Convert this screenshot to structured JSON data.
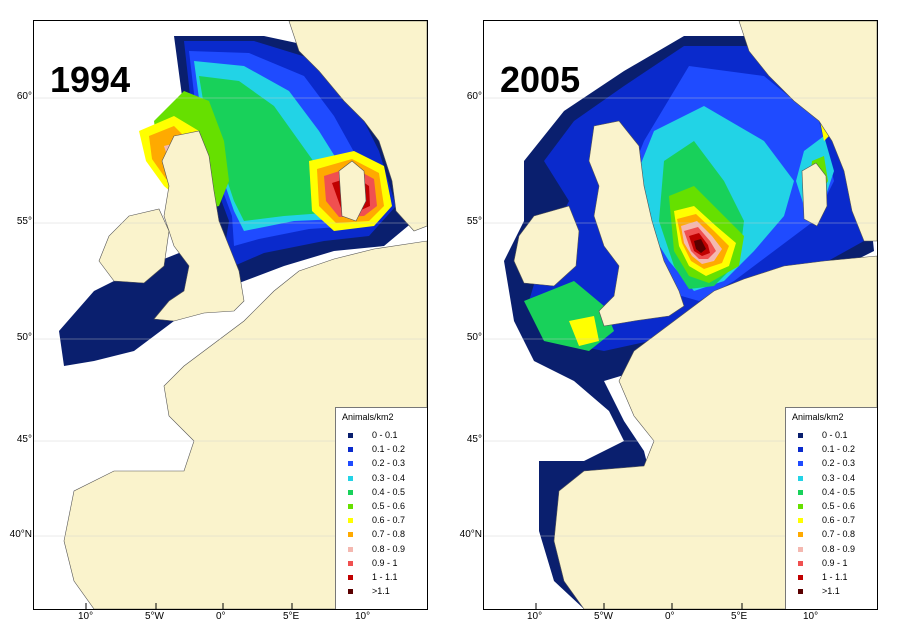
{
  "panels": [
    {
      "year": "1994"
    },
    {
      "year": "2005"
    }
  ],
  "latitude_labels": [
    "60°",
    "55°",
    "50°",
    "45°",
    "40°N"
  ],
  "longitude_labels": [
    "10°",
    "5°W",
    "0°",
    "5°E",
    "10°"
  ],
  "legend": {
    "title": "Animals/km2",
    "classes": [
      {
        "label": "0 - 0.1",
        "color": "#0a1f6e"
      },
      {
        "label": "0.1 - 0.2",
        "color": "#0a2acc"
      },
      {
        "label": "0.2 - 0.3",
        "color": "#1f4bff"
      },
      {
        "label": "0.3 - 0.4",
        "color": "#22d3e6"
      },
      {
        "label": "0.4 - 0.5",
        "color": "#18d15a"
      },
      {
        "label": "0.5 - 0.6",
        "color": "#66e000"
      },
      {
        "label": "0.6 - 0.7",
        "color": "#ffff00"
      },
      {
        "label": "0.7 - 0.8",
        "color": "#ffaa00"
      },
      {
        "label": "0.8 - 0.9",
        "color": "#f4b8b0"
      },
      {
        "label": "0.9 - 1",
        "color": "#f05050"
      },
      {
        "label": "1 - 1.1",
        "color": "#c00000"
      },
      {
        "label": ">1.1",
        "color": "#5a0000"
      }
    ]
  },
  "colors": {
    "land": "#faf3cc",
    "sea": "#ffffff",
    "border": "#000000"
  }
}
